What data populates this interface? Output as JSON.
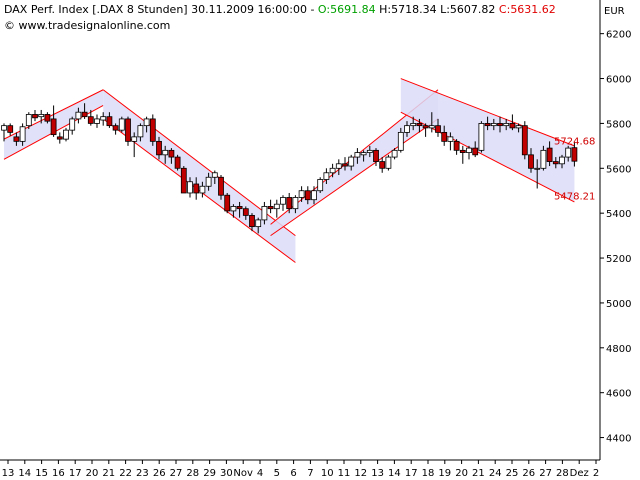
{
  "header": {
    "title": "DAX Perf. Index [.DAX  8 Stunden] 30.11.2009 16:00:00 - ",
    "open_label": "O:",
    "open_value": "5691.84",
    "high_label": "H:",
    "high_value": "5718.34",
    "low_label": "L:",
    "low_value": "5607.82",
    "close_label": "C:",
    "close_value": "5631.62",
    "copyright": "© www.tradesignalonline.com"
  },
  "colors": {
    "bull": "#ffffff",
    "bear": "#c00000",
    "wick": "#000000",
    "channel_line": "#ff0000",
    "channel_fill": "#dcdcf8"
  },
  "chart_data": {
    "type": "candlestick",
    "currency": "EUR",
    "ylim": [
      4300,
      6350
    ],
    "y_ticks": [
      4400,
      4600,
      4800,
      5000,
      5200,
      5400,
      5600,
      5800,
      6000,
      6200
    ],
    "x_tick_labels": [
      "13",
      "14",
      "15",
      "16",
      "17",
      "20",
      "21",
      "22",
      "23",
      "26",
      "27",
      "28",
      "29",
      "30",
      "Nov",
      "4",
      "5",
      "6",
      "7",
      "10",
      "11",
      "12",
      "13",
      "14",
      "17",
      "18",
      "19",
      "20",
      "21",
      "24",
      "25",
      "26",
      "27",
      "28",
      "Dez",
      "2"
    ],
    "annotations": [
      {
        "text": "5724.68",
        "value": 5724.68
      },
      {
        "text": "5478.21",
        "value": 5478.21
      }
    ],
    "channels": [
      {
        "start": [
          0,
          5730
        ],
        "end": [
          16,
          5950
        ],
        "lower_start": [
          0,
          5640
        ],
        "lower_end": [
          16,
          5880
        ]
      },
      {
        "start": [
          16,
          5950
        ],
        "end": [
          47,
          5300
        ],
        "lower_start": [
          16,
          5820
        ],
        "lower_end": [
          47,
          5180
        ]
      },
      {
        "start": [
          43,
          5350
        ],
        "end": [
          70,
          5950
        ],
        "lower_start": [
          43,
          5300
        ],
        "lower_end": [
          70,
          5820
        ]
      },
      {
        "start": [
          64,
          6000
        ],
        "end": [
          92,
          5700
        ],
        "lower_start": [
          64,
          5850
        ],
        "lower_end": [
          92,
          5450
        ]
      }
    ],
    "candles": [
      {
        "o": 5770,
        "h": 5800,
        "l": 5720,
        "c": 5790
      },
      {
        "o": 5790,
        "h": 5800,
        "l": 5745,
        "c": 5760
      },
      {
        "o": 5740,
        "h": 5760,
        "l": 5700,
        "c": 5720
      },
      {
        "o": 5720,
        "h": 5800,
        "l": 5700,
        "c": 5785
      },
      {
        "o": 5790,
        "h": 5850,
        "l": 5775,
        "c": 5840
      },
      {
        "o": 5840,
        "h": 5860,
        "l": 5810,
        "c": 5825
      },
      {
        "o": 5830,
        "h": 5860,
        "l": 5800,
        "c": 5840
      },
      {
        "o": 5840,
        "h": 5850,
        "l": 5800,
        "c": 5810
      },
      {
        "o": 5820,
        "h": 5880,
        "l": 5740,
        "c": 5750
      },
      {
        "o": 5740,
        "h": 5760,
        "l": 5710,
        "c": 5730
      },
      {
        "o": 5730,
        "h": 5780,
        "l": 5720,
        "c": 5770
      },
      {
        "o": 5770,
        "h": 5830,
        "l": 5750,
        "c": 5820
      },
      {
        "o": 5820,
        "h": 5870,
        "l": 5800,
        "c": 5850
      },
      {
        "o": 5850,
        "h": 5890,
        "l": 5820,
        "c": 5830
      },
      {
        "o": 5830,
        "h": 5860,
        "l": 5790,
        "c": 5800
      },
      {
        "o": 5800,
        "h": 5840,
        "l": 5780,
        "c": 5820
      },
      {
        "o": 5815,
        "h": 5850,
        "l": 5790,
        "c": 5830
      },
      {
        "o": 5830,
        "h": 5850,
        "l": 5780,
        "c": 5790
      },
      {
        "o": 5790,
        "h": 5800,
        "l": 5750,
        "c": 5770
      },
      {
        "o": 5770,
        "h": 5830,
        "l": 5760,
        "c": 5820
      },
      {
        "o": 5820,
        "h": 5830,
        "l": 5700,
        "c": 5720
      },
      {
        "o": 5720,
        "h": 5760,
        "l": 5650,
        "c": 5740
      },
      {
        "o": 5740,
        "h": 5800,
        "l": 5720,
        "c": 5790
      },
      {
        "o": 5790,
        "h": 5830,
        "l": 5760,
        "c": 5820
      },
      {
        "o": 5820,
        "h": 5840,
        "l": 5700,
        "c": 5720
      },
      {
        "o": 5720,
        "h": 5740,
        "l": 5640,
        "c": 5660
      },
      {
        "o": 5660,
        "h": 5700,
        "l": 5620,
        "c": 5680
      },
      {
        "o": 5680,
        "h": 5690,
        "l": 5620,
        "c": 5650
      },
      {
        "o": 5650,
        "h": 5660,
        "l": 5590,
        "c": 5600
      },
      {
        "o": 5600,
        "h": 5610,
        "l": 5490,
        "c": 5490
      },
      {
        "o": 5490,
        "h": 5560,
        "l": 5470,
        "c": 5540
      },
      {
        "o": 5530,
        "h": 5560,
        "l": 5460,
        "c": 5490
      },
      {
        "o": 5490,
        "h": 5540,
        "l": 5470,
        "c": 5520
      },
      {
        "o": 5520,
        "h": 5580,
        "l": 5500,
        "c": 5560
      },
      {
        "o": 5560,
        "h": 5590,
        "l": 5530,
        "c": 5580
      },
      {
        "o": 5560,
        "h": 5570,
        "l": 5460,
        "c": 5480
      },
      {
        "o": 5480,
        "h": 5490,
        "l": 5400,
        "c": 5410
      },
      {
        "o": 5410,
        "h": 5440,
        "l": 5380,
        "c": 5430
      },
      {
        "o": 5430,
        "h": 5450,
        "l": 5380,
        "c": 5420
      },
      {
        "o": 5420,
        "h": 5430,
        "l": 5370,
        "c": 5390
      },
      {
        "o": 5390,
        "h": 5400,
        "l": 5320,
        "c": 5340
      },
      {
        "o": 5340,
        "h": 5380,
        "l": 5310,
        "c": 5370
      },
      {
        "o": 5370,
        "h": 5450,
        "l": 5350,
        "c": 5430
      },
      {
        "o": 5430,
        "h": 5460,
        "l": 5400,
        "c": 5420
      },
      {
        "o": 5420,
        "h": 5460,
        "l": 5380,
        "c": 5440
      },
      {
        "o": 5440,
        "h": 5480,
        "l": 5410,
        "c": 5470
      },
      {
        "o": 5470,
        "h": 5490,
        "l": 5400,
        "c": 5420
      },
      {
        "o": 5420,
        "h": 5480,
        "l": 5400,
        "c": 5470
      },
      {
        "o": 5470,
        "h": 5520,
        "l": 5450,
        "c": 5500
      },
      {
        "o": 5500,
        "h": 5520,
        "l": 5440,
        "c": 5460
      },
      {
        "o": 5460,
        "h": 5520,
        "l": 5440,
        "c": 5500
      },
      {
        "o": 5500,
        "h": 5560,
        "l": 5490,
        "c": 5550
      },
      {
        "o": 5550,
        "h": 5600,
        "l": 5530,
        "c": 5580
      },
      {
        "o": 5580,
        "h": 5620,
        "l": 5560,
        "c": 5600
      },
      {
        "o": 5600,
        "h": 5640,
        "l": 5570,
        "c": 5620
      },
      {
        "o": 5620,
        "h": 5650,
        "l": 5590,
        "c": 5610
      },
      {
        "o": 5610,
        "h": 5660,
        "l": 5590,
        "c": 5650
      },
      {
        "o": 5650,
        "h": 5690,
        "l": 5620,
        "c": 5670
      },
      {
        "o": 5660,
        "h": 5680,
        "l": 5630,
        "c": 5670
      },
      {
        "o": 5670,
        "h": 5700,
        "l": 5650,
        "c": 5680
      },
      {
        "o": 5680,
        "h": 5690,
        "l": 5610,
        "c": 5630
      },
      {
        "o": 5630,
        "h": 5650,
        "l": 5580,
        "c": 5600
      },
      {
        "o": 5600,
        "h": 5660,
        "l": 5590,
        "c": 5650
      },
      {
        "o": 5650,
        "h": 5690,
        "l": 5640,
        "c": 5680
      },
      {
        "o": 5680,
        "h": 5780,
        "l": 5670,
        "c": 5760
      },
      {
        "o": 5760,
        "h": 5810,
        "l": 5740,
        "c": 5790
      },
      {
        "o": 5790,
        "h": 5830,
        "l": 5770,
        "c": 5800
      },
      {
        "o": 5800,
        "h": 5820,
        "l": 5760,
        "c": 5790
      },
      {
        "o": 5790,
        "h": 5800,
        "l": 5740,
        "c": 5780
      },
      {
        "o": 5780,
        "h": 5850,
        "l": 5760,
        "c": 5790
      },
      {
        "o": 5790,
        "h": 5820,
        "l": 5740,
        "c": 5760
      },
      {
        "o": 5760,
        "h": 5790,
        "l": 5700,
        "c": 5720
      },
      {
        "o": 5720,
        "h": 5760,
        "l": 5680,
        "c": 5740
      },
      {
        "o": 5720,
        "h": 5730,
        "l": 5660,
        "c": 5680
      },
      {
        "o": 5680,
        "h": 5700,
        "l": 5620,
        "c": 5670
      },
      {
        "o": 5670,
        "h": 5700,
        "l": 5640,
        "c": 5690
      },
      {
        "o": 5690,
        "h": 5720,
        "l": 5650,
        "c": 5660
      },
      {
        "o": 5680,
        "h": 5810,
        "l": 5670,
        "c": 5800
      },
      {
        "o": 5800,
        "h": 5830,
        "l": 5770,
        "c": 5790
      },
      {
        "o": 5790,
        "h": 5820,
        "l": 5770,
        "c": 5800
      },
      {
        "o": 5800,
        "h": 5830,
        "l": 5760,
        "c": 5790
      },
      {
        "o": 5790,
        "h": 5820,
        "l": 5770,
        "c": 5800
      },
      {
        "o": 5800,
        "h": 5840,
        "l": 5770,
        "c": 5780
      },
      {
        "o": 5780,
        "h": 5800,
        "l": 5760,
        "c": 5790
      },
      {
        "o": 5790,
        "h": 5810,
        "l": 5640,
        "c": 5660
      },
      {
        "o": 5660,
        "h": 5690,
        "l": 5580,
        "c": 5600
      },
      {
        "o": 5600,
        "h": 5640,
        "l": 5510,
        "c": 5600
      },
      {
        "o": 5600,
        "h": 5700,
        "l": 5590,
        "c": 5680
      },
      {
        "o": 5690,
        "h": 5720,
        "l": 5610,
        "c": 5630
      },
      {
        "o": 5630,
        "h": 5650,
        "l": 5600,
        "c": 5620
      },
      {
        "o": 5620,
        "h": 5660,
        "l": 5600,
        "c": 5650
      },
      {
        "o": 5650,
        "h": 5700,
        "l": 5630,
        "c": 5690
      },
      {
        "o": 5691.84,
        "h": 5718.34,
        "l": 5607.82,
        "c": 5631.62
      }
    ]
  }
}
